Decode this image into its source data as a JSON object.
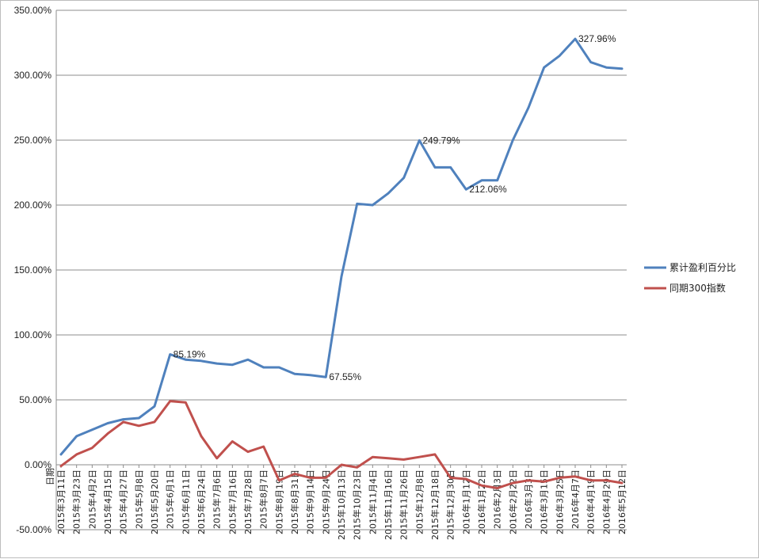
{
  "chart_data": {
    "type": "line",
    "xlabel": "日期",
    "ylim": [
      -0.5,
      3.5
    ],
    "y_ticks": [
      -0.5,
      0,
      0.5,
      1,
      1.5,
      2,
      2.5,
      3,
      3.5
    ],
    "y_tick_labels": [
      "-50.00%",
      "0.00%",
      "50.00%",
      "100.00%",
      "150.00%",
      "200.00%",
      "250.00%",
      "300.00%",
      "350.00%"
    ],
    "grid": true,
    "legend_position": "right",
    "x_tick_labels": [
      "2015年3月11日",
      "2015年3月23日",
      "2015年4月2日",
      "2015年4月15日",
      "2015年4月27日",
      "2015年5月8日",
      "2015年5月20日",
      "2015年6月1日",
      "2015年6月11日",
      "2015年6月24日",
      "2015年7月6日",
      "2015年7月16日",
      "2015年7月28日",
      "2015年8月7日",
      "2015年8月19日",
      "2015年8月31日",
      "2015年9月14日",
      "2015年9月24日",
      "2015年10月13日",
      "2015年10月23日",
      "2015年11月4日",
      "2015年11月16日",
      "2015年11月26日",
      "2015年12月8日",
      "2015年12月18日",
      "2015年12月30日",
      "2016年1月12日",
      "2016年1月22日",
      "2016年2月3日",
      "2016年2月22日",
      "2016年3月3日",
      "2016年3月15日",
      "2016年3月25日",
      "2016年4月7日",
      "2016年4月19日",
      "2016年4月29日",
      "2016年5月12日"
    ],
    "x": [
      0,
      1,
      2,
      3,
      4,
      5,
      6,
      7,
      8,
      9,
      10,
      11,
      12,
      13,
      14,
      15,
      16,
      17,
      18,
      19,
      20,
      21,
      22,
      23,
      24,
      25,
      26,
      27,
      28,
      29,
      30,
      31,
      32,
      33,
      34,
      35,
      36
    ],
    "series": [
      {
        "name": "累计盈利百分比",
        "color": "#4F81BD",
        "values": [
          0.08,
          0.22,
          0.27,
          0.32,
          0.35,
          0.36,
          0.45,
          0.85,
          0.81,
          0.8,
          0.78,
          0.77,
          0.81,
          0.75,
          0.75,
          0.7,
          0.69,
          0.6755,
          1.45,
          2.01,
          2.0,
          2.09,
          2.21,
          2.4979,
          2.29,
          2.29,
          2.1206,
          2.19,
          2.19,
          2.5,
          2.75,
          3.06,
          3.15,
          3.2796,
          3.1,
          3.06,
          3.05
        ]
      },
      {
        "name": "同期300指数",
        "color": "#C0504D",
        "values": [
          -0.01,
          0.08,
          0.13,
          0.24,
          0.33,
          0.3,
          0.33,
          0.49,
          0.48,
          0.22,
          0.05,
          0.18,
          0.1,
          0.14,
          -0.12,
          -0.07,
          -0.1,
          -0.1,
          0.0,
          -0.02,
          0.06,
          0.05,
          0.04,
          0.06,
          0.08,
          -0.1,
          -0.11,
          -0.16,
          -0.18,
          -0.14,
          -0.12,
          -0.13,
          -0.1,
          -0.09,
          -0.12,
          -0.12,
          -0.14
        ]
      }
    ],
    "annotations": [
      {
        "series": 0,
        "index": 7,
        "text": "85.19%"
      },
      {
        "series": 0,
        "index": 17,
        "text": "67.55%"
      },
      {
        "series": 0,
        "index": 23,
        "text": "249.79%"
      },
      {
        "series": 0,
        "index": 26,
        "text": "212.06%"
      },
      {
        "series": 0,
        "index": 33,
        "text": "327.96%"
      }
    ]
  }
}
